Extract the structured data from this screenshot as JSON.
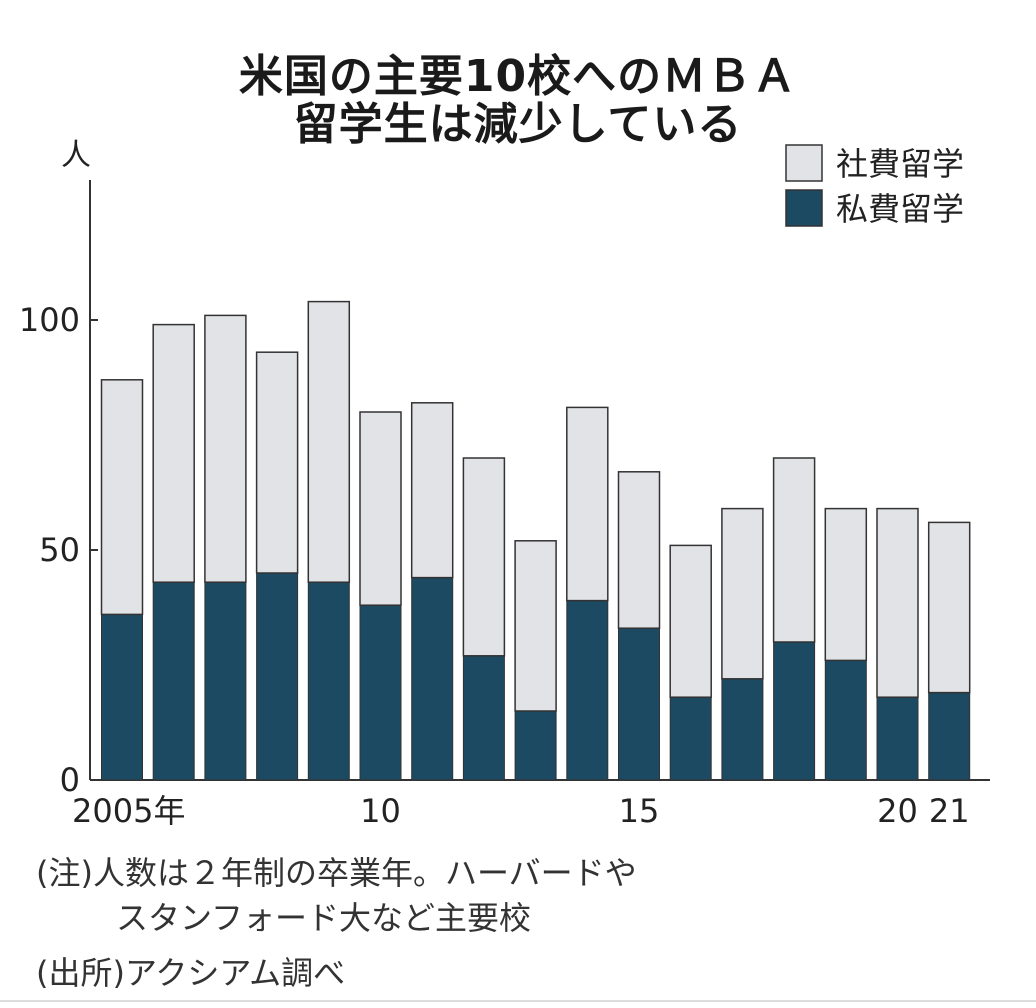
{
  "title": {
    "line1": "米国の主要10校へのＭＢＡ",
    "line2": "留学生は減少している"
  },
  "colors": {
    "company_sponsored": "#e2e3e6",
    "self_funded": "#1c4a63",
    "bar_stroke": "#333333",
    "axis": "#333333"
  },
  "chart_data": {
    "type": "bar",
    "stacked": true,
    "title": "米国の主要10校へのＭＢＡ留学生は減少している",
    "ylabel": "人",
    "xlabel": "",
    "ylim": [
      0,
      125
    ],
    "yticks": [
      0,
      50,
      100
    ],
    "x": [
      2005,
      2006,
      2007,
      2008,
      2009,
      2010,
      2011,
      2012,
      2013,
      2014,
      2015,
      2016,
      2017,
      2018,
      2019,
      2020,
      2021
    ],
    "xtick_labels": [
      {
        "year": 2005,
        "label": "2005年"
      },
      {
        "year": 2010,
        "label": "10"
      },
      {
        "year": 2015,
        "label": "15"
      },
      {
        "year": 2020,
        "label": "20"
      },
      {
        "year": 2021,
        "label": "21"
      }
    ],
    "series": [
      {
        "name": "私費留学",
        "values": [
          36,
          43,
          43,
          45,
          43,
          38,
          44,
          27,
          15,
          39,
          33,
          18,
          22,
          30,
          26,
          18,
          19
        ]
      },
      {
        "name": "社費留学",
        "values": [
          51,
          56,
          58,
          48,
          61,
          42,
          38,
          43,
          37,
          42,
          34,
          33,
          37,
          40,
          33,
          41,
          37
        ]
      }
    ],
    "legend": [
      "社費留学",
      "私費留学"
    ],
    "legend_position": "top-right",
    "grid": false
  },
  "notes": {
    "note_line1": "(注)人数は２年制の卒業年。ハーバードや",
    "note_line2": "スタンフォード大など主要校",
    "source": "(出所)アクシアム調べ"
  }
}
